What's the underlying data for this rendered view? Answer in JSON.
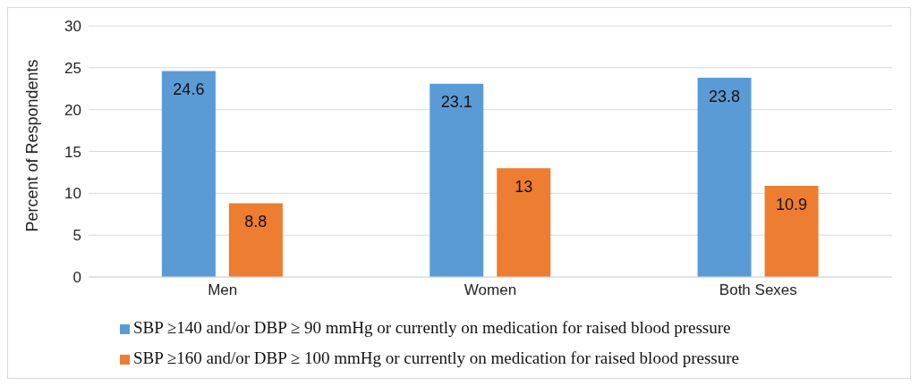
{
  "chart_data": {
    "type": "bar",
    "ylabel": "Percent of Respondents",
    "categories": [
      "Men",
      "Women",
      "Both Sexes"
    ],
    "series": [
      {
        "name": "SBP ≥140 and/or DBP ≥ 90 mmHg or currently on medication for raised blood pressure",
        "color": "#5b9bd5",
        "values": [
          24.6,
          23.1,
          23.8
        ]
      },
      {
        "name": "SBP ≥160 and/or DBP ≥ 100 mmHg or currently on medication for raised blood pressure",
        "color": "#ed7d31",
        "values": [
          8.8,
          13,
          10.9
        ]
      }
    ],
    "ylim": [
      0,
      30
    ],
    "yticks": [
      0,
      5,
      10,
      15,
      20,
      25,
      30
    ],
    "grid": "y",
    "legend": "bottom",
    "data_labels": true
  }
}
